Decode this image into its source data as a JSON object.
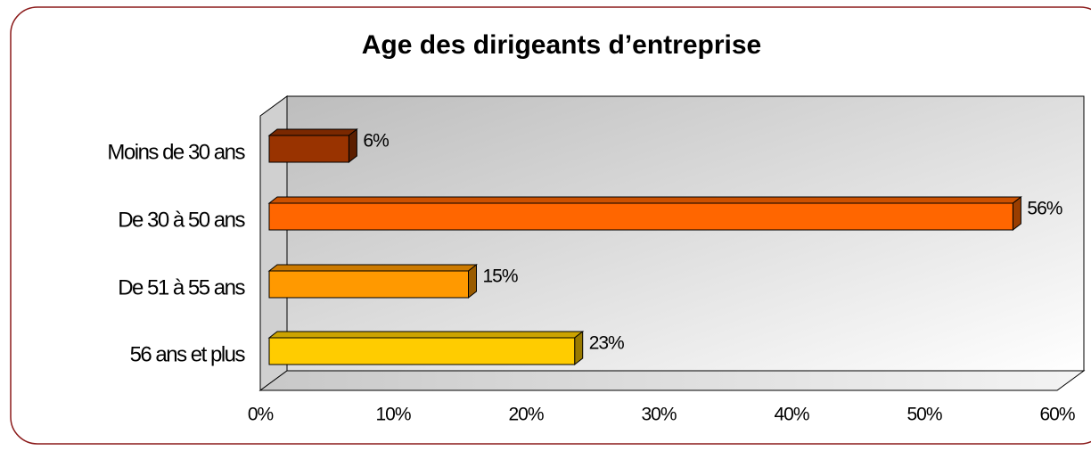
{
  "chart_data": {
    "type": "bar",
    "orientation": "horizontal",
    "title": "Age des dirigeants d’entreprise",
    "categories": [
      "Moins de 30 ans",
      "De 30 à 50 ans",
      "De 51 à 55 ans",
      "56 ans et plus"
    ],
    "values": [
      6,
      56,
      15,
      23
    ],
    "value_labels": [
      "6%",
      "56%",
      "15%",
      "23%"
    ],
    "colors": [
      "#993300",
      "#ff6600",
      "#ff9900",
      "#ffcc00"
    ],
    "xlim": [
      0,
      60
    ],
    "xticks": [
      {
        "value": 0,
        "label": "0%"
      },
      {
        "value": 10,
        "label": "10%"
      },
      {
        "value": 20,
        "label": "20%"
      },
      {
        "value": 30,
        "label": "30%"
      },
      {
        "value": 40,
        "label": "40%"
      },
      {
        "value": 50,
        "label": "50%"
      },
      {
        "value": 60,
        "label": "60%"
      }
    ]
  }
}
